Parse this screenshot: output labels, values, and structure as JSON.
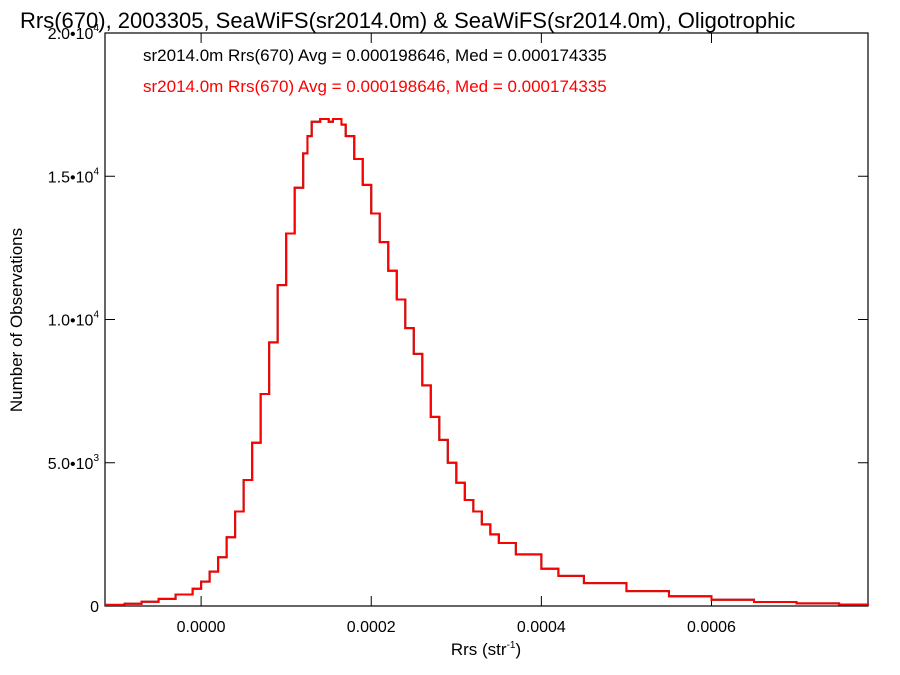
{
  "chart_data": {
    "type": "line",
    "title": "Rrs(670), 2003305, SeaWiFS(sr2014.0m) & SeaWiFS(sr2014.0m), Oligotrophic",
    "xlabel": "Rrs (str",
    "xlabel_sup": "-1",
    "xlabel_end": ")",
    "ylabel": "Number of Observations",
    "xlim": [
      -0.000113,
      0.000784
    ],
    "ylim": [
      0,
      20000
    ],
    "xticks": [
      {
        "value": 0.0,
        "label": "0.0000"
      },
      {
        "value": 0.0002,
        "label": "0.0002"
      },
      {
        "value": 0.0004,
        "label": "0.0004"
      },
      {
        "value": 0.0006,
        "label": "0.0006"
      }
    ],
    "yticks": [
      {
        "value": 0,
        "mant": "0",
        "exp": ""
      },
      {
        "value": 5000,
        "mant": "5.0•10",
        "exp": "3"
      },
      {
        "value": 10000,
        "mant": "1.0•10",
        "exp": "4"
      },
      {
        "value": 15000,
        "mant": "1.5•10",
        "exp": "4"
      },
      {
        "value": 20000,
        "mant": "2.0•10",
        "exp": "4"
      }
    ],
    "annotations": [
      {
        "text": "sr2014.0m Rrs(670) Avg = 0.000198646, Med = 0.000174335",
        "color": "#000000"
      },
      {
        "text": "sr2014.0m Rrs(670) Avg = 0.000198646, Med = 0.000174335",
        "color": "#ff0000"
      }
    ],
    "series": [
      {
        "color": "#000000",
        "x": [
          -0.000113,
          -9e-05,
          -7e-05,
          -5e-05,
          -3e-05,
          -1e-05,
          0.0,
          1e-05,
          2e-05,
          3e-05,
          4e-05,
          5e-05,
          6e-05,
          7e-05,
          8e-05,
          9e-05,
          0.0001,
          0.00011,
          0.00012,
          0.000125,
          0.00013,
          0.00014,
          0.00015,
          0.000155,
          0.00016,
          0.000165,
          0.00017,
          0.00018,
          0.00019,
          0.0002,
          0.00021,
          0.00022,
          0.00023,
          0.00024,
          0.00025,
          0.00026,
          0.00027,
          0.00028,
          0.00029,
          0.0003,
          0.00031,
          0.00032,
          0.00033,
          0.00034,
          0.00035,
          0.00037,
          0.0004,
          0.00042,
          0.00045,
          0.0005,
          0.00055,
          0.0006,
          0.00065,
          0.0007,
          0.00075,
          0.000784
        ],
        "y": [
          40,
          80,
          150,
          250,
          400,
          600,
          850,
          1200,
          1700,
          2400,
          3300,
          4400,
          5700,
          7400,
          9200,
          11200,
          13000,
          14600,
          15800,
          16400,
          16900,
          17000,
          16900,
          17000,
          17000,
          16800,
          16400,
          15600,
          14700,
          13700,
          12700,
          11700,
          10700,
          9700,
          8800,
          7700,
          6600,
          5800,
          5000,
          4300,
          3700,
          3300,
          2850,
          2500,
          2200,
          1800,
          1300,
          1050,
          800,
          520,
          340,
          220,
          140,
          90,
          50,
          30
        ]
      },
      {
        "color": "#ff0000",
        "x": [
          -0.000113,
          -9e-05,
          -7e-05,
          -5e-05,
          -3e-05,
          -1e-05,
          0.0,
          1e-05,
          2e-05,
          3e-05,
          4e-05,
          5e-05,
          6e-05,
          7e-05,
          8e-05,
          9e-05,
          0.0001,
          0.00011,
          0.00012,
          0.000125,
          0.00013,
          0.00014,
          0.00015,
          0.000155,
          0.00016,
          0.000165,
          0.00017,
          0.00018,
          0.00019,
          0.0002,
          0.00021,
          0.00022,
          0.00023,
          0.00024,
          0.00025,
          0.00026,
          0.00027,
          0.00028,
          0.00029,
          0.0003,
          0.00031,
          0.00032,
          0.00033,
          0.00034,
          0.00035,
          0.00037,
          0.0004,
          0.00042,
          0.00045,
          0.0005,
          0.00055,
          0.0006,
          0.00065,
          0.0007,
          0.00075,
          0.000784
        ],
        "y": [
          40,
          80,
          150,
          250,
          400,
          600,
          850,
          1200,
          1700,
          2400,
          3300,
          4400,
          5700,
          7400,
          9200,
          11200,
          13000,
          14600,
          15800,
          16400,
          16900,
          17000,
          16900,
          17000,
          17000,
          16800,
          16400,
          15600,
          14700,
          13700,
          12700,
          11700,
          10700,
          9700,
          8800,
          7700,
          6600,
          5800,
          5000,
          4300,
          3700,
          3300,
          2850,
          2500,
          2200,
          1800,
          1300,
          1050,
          800,
          520,
          340,
          220,
          140,
          90,
          50,
          30
        ]
      }
    ],
    "grid": false,
    "legend": "none"
  }
}
